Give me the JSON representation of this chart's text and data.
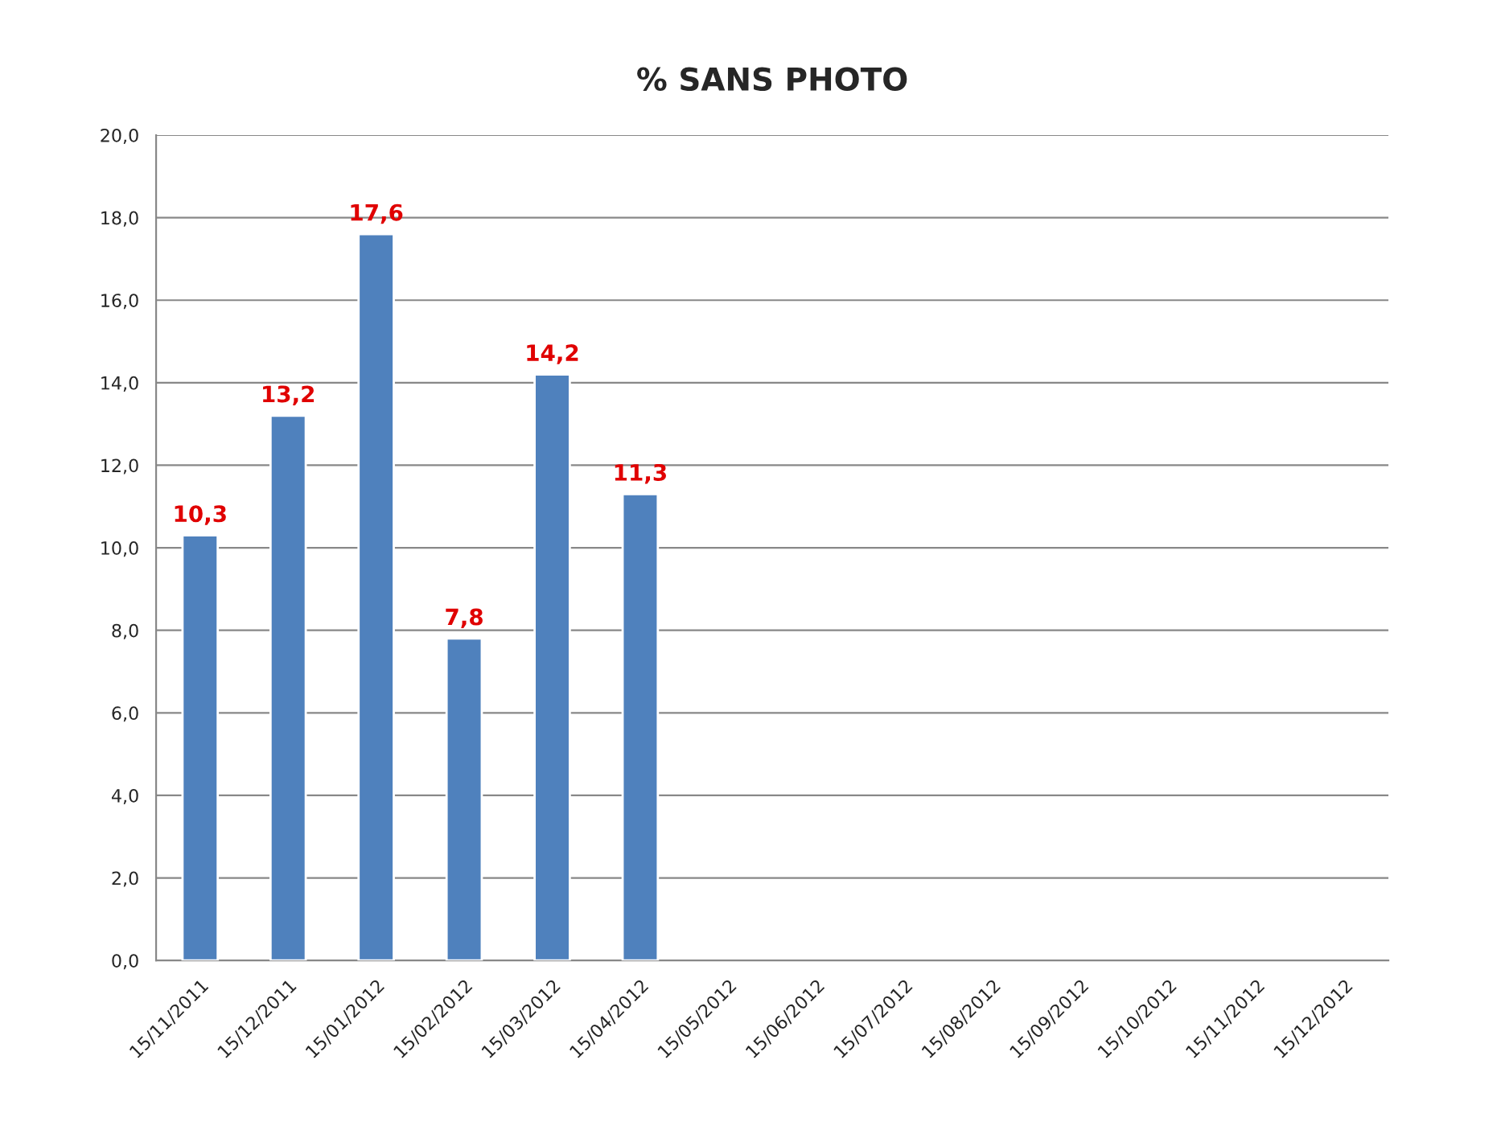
{
  "chart_data": {
    "type": "bar",
    "title": "% SANS PHOTO",
    "categories": [
      "15/11/2011",
      "15/12/2011",
      "15/01/2012",
      "15/02/2012",
      "15/03/2012",
      "15/04/2012",
      "15/05/2012",
      "15/06/2012",
      "15/07/2012",
      "15/08/2012",
      "15/09/2012",
      "15/10/2012",
      "15/11/2012",
      "15/12/2012"
    ],
    "values": [
      10.3,
      13.2,
      17.6,
      7.8,
      14.2,
      11.3,
      null,
      null,
      null,
      null,
      null,
      null,
      null,
      null
    ],
    "value_labels": [
      "10,3",
      "13,2",
      "17,6",
      "7,8",
      "14,2",
      "11,3",
      null,
      null,
      null,
      null,
      null,
      null,
      null,
      null
    ],
    "color": "#4f81bd",
    "ylim": [
      0,
      20
    ],
    "yticks": [
      {
        "value": 0,
        "label": "0,0"
      },
      {
        "value": 2,
        "label": "2,0"
      },
      {
        "value": 4,
        "label": "4,0"
      },
      {
        "value": 6,
        "label": "6,0"
      },
      {
        "value": 8,
        "label": "8,0"
      },
      {
        "value": 10,
        "label": "10,0"
      },
      {
        "value": 12,
        "label": "12,0"
      },
      {
        "value": 14,
        "label": "14,0"
      },
      {
        "value": 16,
        "label": "16,0"
      },
      {
        "value": 18,
        "label": "18,0"
      },
      {
        "value": 20,
        "label": "20,0"
      }
    ],
    "grid": "y"
  }
}
